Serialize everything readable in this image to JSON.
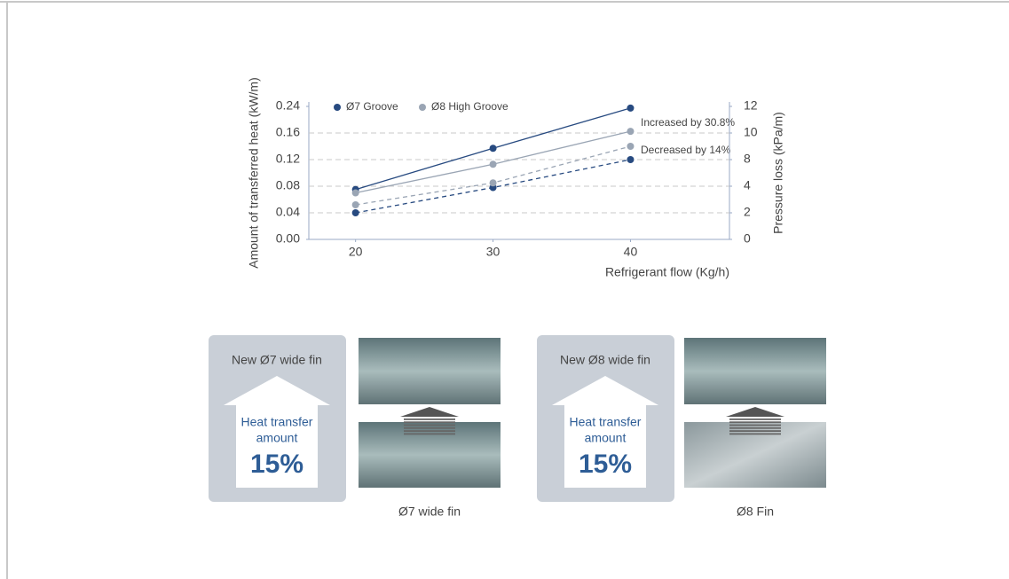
{
  "chart_data": {
    "type": "line",
    "x_label": "Refrigerant flow (Kg/h)",
    "y_label": "Amount of transferred heat (kW/m)",
    "y2_label": "Pressure loss (kPa/m)",
    "x": [
      20,
      30,
      40
    ],
    "xlim": [
      16.6,
      47.2
    ],
    "xticks": [
      20,
      30,
      40
    ],
    "ylim": [
      0,
      0.24
    ],
    "yticks": [
      {
        "value": 0,
        "label": "0.00"
      },
      {
        "value": 0.04,
        "label": "0.04"
      },
      {
        "value": 0.08,
        "label": "0.08"
      },
      {
        "value": 0.12,
        "label": "0.12"
      },
      {
        "value": 0.16,
        "label": "0.16"
      },
      {
        "value": 0.24,
        "label": "0.24"
      }
    ],
    "y2lim": [
      0,
      12
    ],
    "y2ticks": [
      0,
      2,
      4,
      8,
      10,
      12
    ],
    "grid": true,
    "series": [
      {
        "name": "Ø7 Groove",
        "color": "#274a80",
        "values": [
          0.075,
          0.137,
          0.235
        ],
        "y2_values": [
          2,
          3.9,
          8
        ]
      },
      {
        "name": "Ø8 High Groove",
        "color": "#9aa5b4",
        "values": [
          0.07,
          0.113,
          0.165
        ],
        "y2_values": [
          2.6,
          4.5,
          9
        ]
      }
    ],
    "annotations": [
      "Increased by 30.8%",
      "Decreased by 14%"
    ]
  },
  "panels": [
    {
      "title": "New Ø7 wide fin",
      "arrow_text": [
        "Heat transfer",
        "amount"
      ],
      "percent": "15%",
      "caption": "Ø7 wide fin"
    },
    {
      "title": "New Ø8 wide fin",
      "arrow_text": [
        "Heat transfer",
        "amount"
      ],
      "percent": "15%",
      "caption": "Ø8 Fin"
    }
  ]
}
